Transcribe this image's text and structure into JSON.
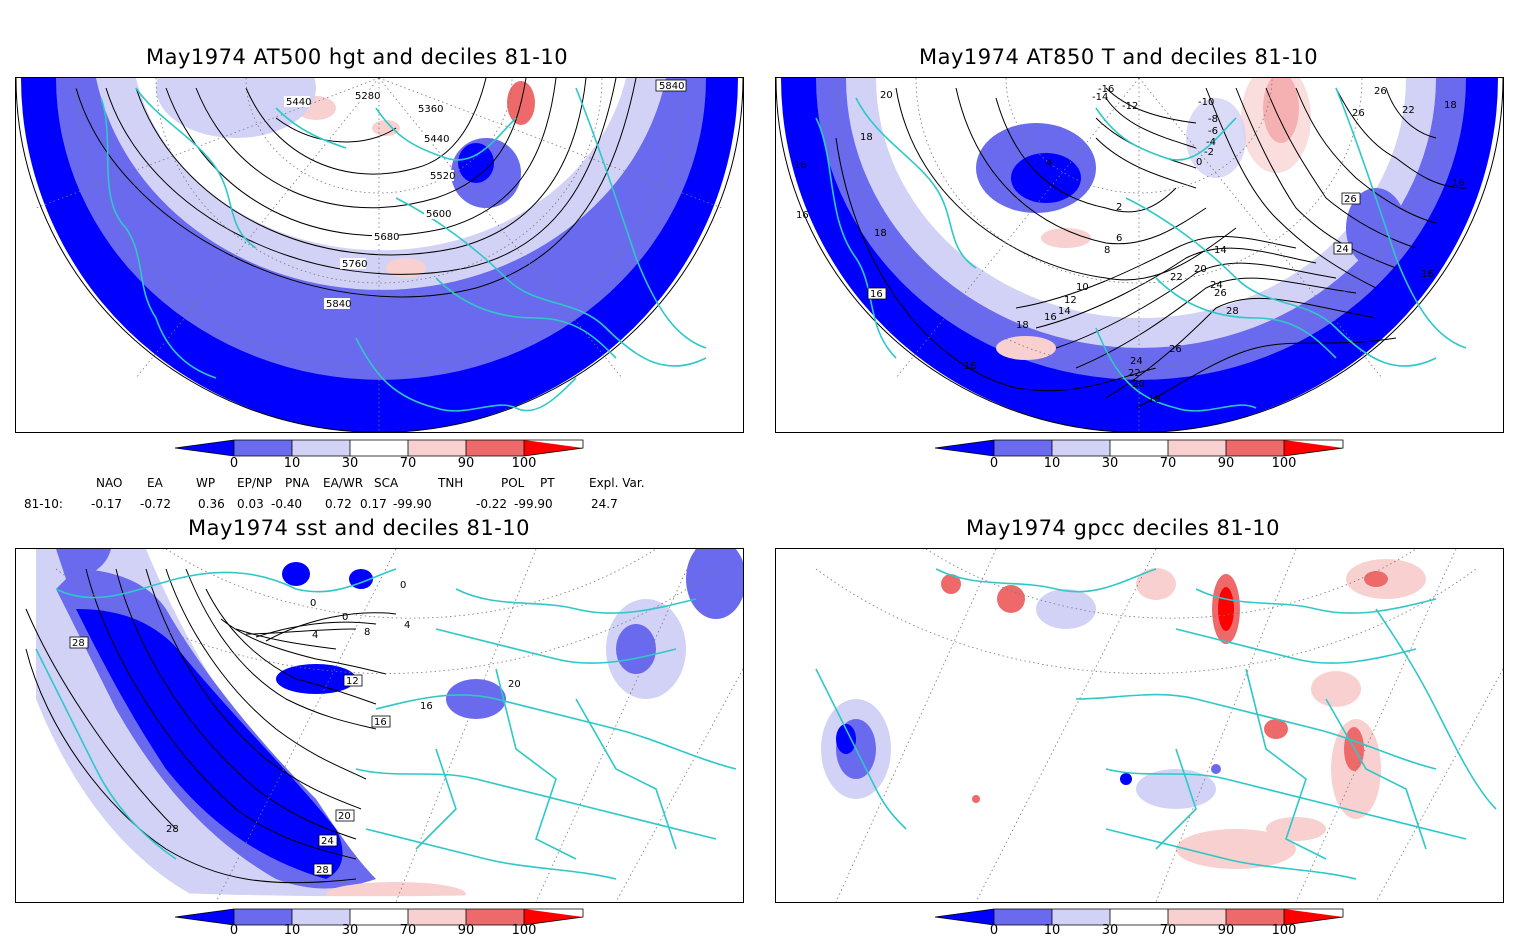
{
  "colors": {
    "very_low": "#0000ff",
    "low": "#6a6aee",
    "below": "#d2d2f6",
    "normal": "#ffffff",
    "above": "#f8d0d0",
    "high": "#ee6a6a",
    "very_high": "#ff0000",
    "coast": "#2ec8c8",
    "contour": "#000000"
  },
  "panels": [
    {
      "title": "May1974 AT500 hgt and deciles 81-10",
      "contour_labels": [
        "5440",
        "5280",
        "5360",
        "5440",
        "5520",
        "5600",
        "5680",
        "5760",
        "5840",
        "5840"
      ]
    },
    {
      "title": "May1974 AT850 T and deciles 81-10",
      "contour_labels": [
        "20",
        "18",
        "16",
        "16",
        "18",
        "16",
        "4",
        "2",
        "6",
        "8",
        "10",
        "12",
        "14",
        "16",
        "18",
        "20",
        "22",
        "24",
        "26",
        "28",
        "26",
        "24",
        "22",
        "20",
        "18",
        "16",
        "-16",
        "-14",
        "-12",
        "-10",
        "-8",
        "-6",
        "-4",
        "-2",
        "0",
        "26",
        "22",
        "26",
        "18",
        "16",
        "24",
        "16",
        "26",
        "14"
      ]
    },
    {
      "title": "May1974 sst and deciles 81-10",
      "contour_labels": [
        "28",
        "0",
        "0",
        "0",
        "4",
        "8",
        "4",
        "12",
        "16",
        "16",
        "20",
        "20",
        "24",
        "28",
        "28"
      ]
    },
    {
      "title": "May1974 gpcc deciles 81-10",
      "contour_labels": []
    }
  ],
  "colorbar": {
    "ticks": [
      "0",
      "10",
      "30",
      "70",
      "90",
      "100"
    ]
  },
  "indices": {
    "row_label": "81-10:",
    "names": [
      "NAO",
      "EA",
      "WP",
      "EP/NP",
      "PNA",
      "EA/WR",
      "SCA",
      "TNH",
      "POL",
      "PT",
      "Expl. Var."
    ],
    "values": [
      "-0.17",
      "-0.72",
      "0.36",
      "0.03",
      "-0.40",
      "0.72",
      "0.17",
      "-99.90",
      "-0.22",
      "-99.90",
      "24.7"
    ]
  }
}
